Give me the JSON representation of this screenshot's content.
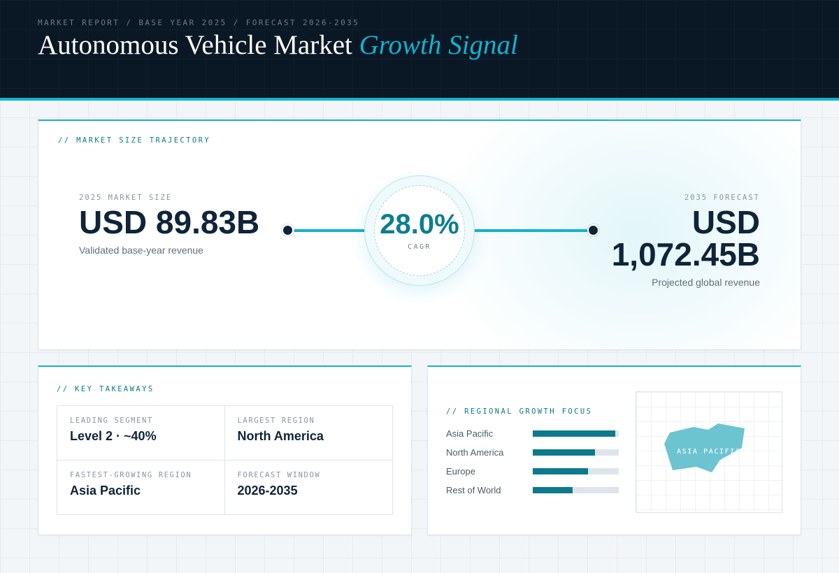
{
  "header": {
    "breadcrumb": "MARKET REPORT / BASE YEAR 2025 / FORECAST 2026-2035",
    "title_main": "Autonomous Vehicle Market",
    "title_accent": "Growth Signal"
  },
  "trajectory": {
    "section_label": "// MARKET SIZE TRAJECTORY",
    "left": {
      "label": "2025 MARKET SIZE",
      "value": "USD 89.83B",
      "caption": "Validated base-year revenue"
    },
    "right": {
      "label": "2035 FORECAST",
      "value_line1": "USD",
      "value_line2": "1,072.45B",
      "caption": "Projected global revenue"
    },
    "cagr": {
      "value": "28.0%",
      "label": "CAGR"
    }
  },
  "takeaways": {
    "section_label": "// KEY TAKEAWAYS",
    "items": [
      {
        "label": "LEADING SEGMENT",
        "value": "Level 2 · ~40%"
      },
      {
        "label": "LARGEST REGION",
        "value": "North America"
      },
      {
        "label": "FASTEST-GROWING REGION",
        "value": "Asia Pacific"
      },
      {
        "label": "FORECAST WINDOW",
        "value": "2026-2035"
      }
    ]
  },
  "regional": {
    "section_label": "// REGIONAL GROWTH FOCUS",
    "regions": [
      {
        "name": "Asia Pacific",
        "fraction": 0.96
      },
      {
        "name": "North America",
        "fraction": 0.72
      },
      {
        "name": "Europe",
        "fraction": 0.64
      },
      {
        "name": "Rest of World",
        "fraction": 0.46
      }
    ],
    "map_label": "ASIA PACIFIC"
  },
  "colors": {
    "accent": "#12b3cc",
    "header_bg": "#0a1826",
    "bar_fill": "#0c7a8c",
    "map_shape": "#6cc4d1"
  }
}
